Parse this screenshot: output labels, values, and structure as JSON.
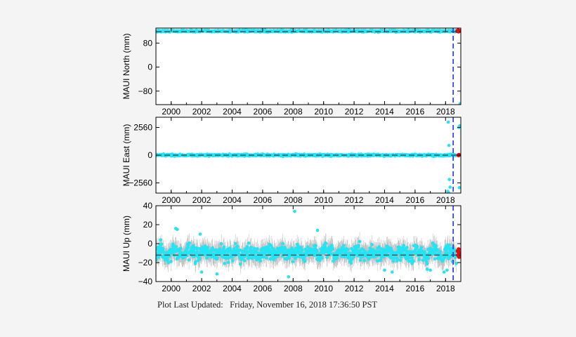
{
  "footer": {
    "label": "Plot Last Updated:",
    "value": "Friday, November 16, 2018 17:36:50 PST"
  },
  "colors": {
    "data_points": "#22e4f4",
    "error_bars": "#a9a9a9",
    "recent_points": "#dd1111",
    "event_line": "#2233ee",
    "reference_line": "#222222",
    "axes": "#000000"
  },
  "chart_data": [
    {
      "type": "scatter",
      "title": "",
      "ylabel": "MAUI North (mm)",
      "xlim": [
        1999.0,
        2019.0
      ],
      "ylim": [
        -125,
        130
      ],
      "x_ticks": [
        2000,
        2002,
        2004,
        2006,
        2008,
        2010,
        2012,
        2014,
        2016,
        2018
      ],
      "y_ticks": [
        80,
        0,
        -80
      ],
      "reference_level": 118,
      "band": {
        "center": 120,
        "spread": 3,
        "x_start": 1999.0,
        "x_end": 2018.7
      },
      "event_line_x": 2018.5,
      "recent_points": {
        "x": [
          2018.78,
          2018.82,
          2018.86,
          2018.9
        ],
        "y": [
          120,
          122,
          119,
          121
        ]
      },
      "outliers": {
        "x": [
          2018.95
        ],
        "y": [
          -122
        ]
      }
    },
    {
      "type": "scatter",
      "title": "",
      "ylabel": "MAUI East (mm)",
      "xlim": [
        1999.0,
        2019.0
      ],
      "ylim": [
        -3500,
        3500
      ],
      "x_ticks": [
        2000,
        2002,
        2004,
        2006,
        2008,
        2010,
        2012,
        2014,
        2016,
        2018
      ],
      "y_ticks": [
        2560,
        0,
        -2560
      ],
      "reference_level": 0,
      "band": {
        "center": 0,
        "spread": 90,
        "x_start": 1999.0,
        "x_end": 2018.7
      },
      "event_line_x": 2018.5,
      "recent_points": {
        "x": [
          2018.85,
          2018.88
        ],
        "y": [
          0,
          20
        ]
      },
      "outliers": {
        "x": [
          2018.18,
          2018.22,
          2018.25,
          2018.3,
          2018.15,
          2018.2,
          2018.87,
          2018.92,
          2018.9
        ],
        "y": [
          3050,
          900,
          -2250,
          -2950,
          -3350,
          -3450,
          2550,
          2700,
          -3000
        ]
      }
    },
    {
      "type": "scatter",
      "title": "",
      "ylabel": "MAUI Up (mm)",
      "xlim": [
        1999.0,
        2019.0
      ],
      "ylim": [
        -40,
        40
      ],
      "x_ticks": [
        2000,
        2002,
        2004,
        2006,
        2008,
        2010,
        2012,
        2014,
        2016,
        2018
      ],
      "y_ticks": [
        40,
        20,
        0,
        -20,
        -40
      ],
      "reference_level": -12,
      "band": {
        "center": -10,
        "spread": 8,
        "x_start": 1999.0,
        "x_end": 2018.7,
        "error_bar": 10
      },
      "event_line_x": 2018.5,
      "recent_points": {
        "x": [
          2018.8,
          2018.83,
          2018.86,
          2018.89,
          2018.92
        ],
        "y": [
          -8,
          -12,
          -6,
          -14,
          -10
        ]
      },
      "outliers": {
        "x": [
          1999.3,
          2000.3,
          2000.4,
          2001.9,
          2003.0,
          2003.5,
          2007.7,
          2008.1,
          2009.6,
          2014.0,
          2014.5,
          2015.8,
          2016.8,
          2017.0,
          2017.9,
          2018.1,
          2002.0
        ],
        "y": [
          4,
          16,
          15,
          10,
          -32,
          -21,
          -35,
          34,
          14,
          -28,
          -30,
          -21,
          -27,
          -28,
          -30,
          -28,
          -30
        ]
      }
    }
  ]
}
